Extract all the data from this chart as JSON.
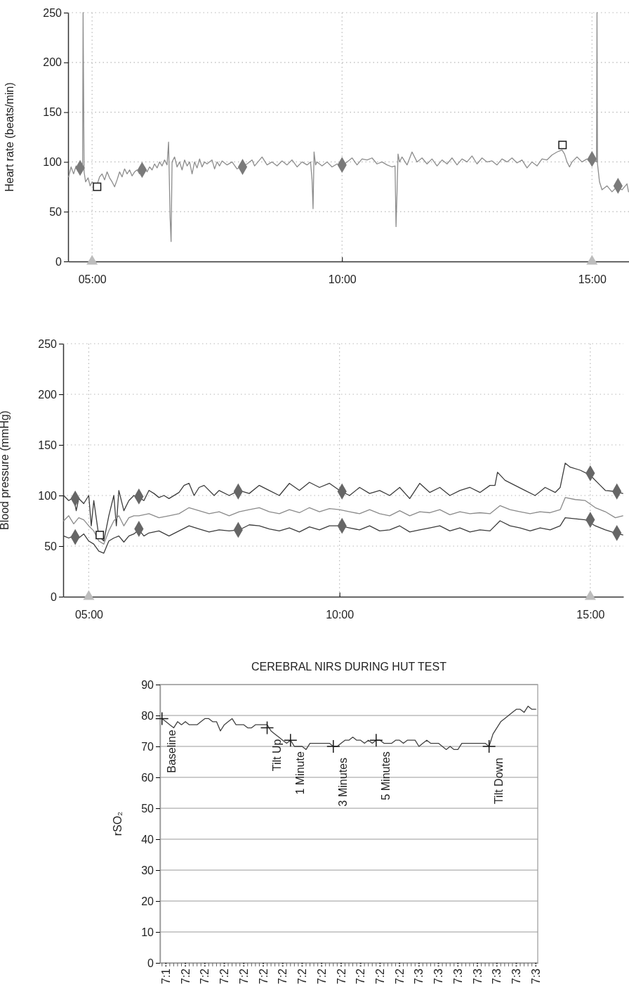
{
  "chart_data": [
    {
      "type": "line",
      "ylabel": "Heart rate (beats/min)",
      "xlim": [
        4.52,
        15.74
      ],
      "xticks": [
        {
          "value": 5,
          "label": "05:00"
        },
        {
          "value": 10,
          "label": "10:00"
        },
        {
          "value": 15,
          "label": "15:00"
        }
      ],
      "ylim": [
        0,
        250
      ],
      "yticks": [
        0,
        50,
        100,
        150,
        200,
        250
      ],
      "grid": true,
      "series": [
        {
          "color": "#8c8c8c",
          "x": [
            4.53,
            4.58,
            4.63,
            4.68,
            4.73,
            4.78,
            4.81,
            4.82,
            4.84,
            4.87,
            4.92,
            4.96,
            5.0,
            5.05,
            5.1,
            5.15,
            5.2,
            5.25,
            5.3,
            5.35,
            5.4,
            5.45,
            5.5,
            5.55,
            5.6,
            5.65,
            5.7,
            5.75,
            5.8,
            5.85,
            5.9,
            5.95,
            6.0,
            6.05,
            6.1,
            6.15,
            6.2,
            6.25,
            6.3,
            6.35,
            6.4,
            6.45,
            6.5,
            6.53,
            6.56,
            6.58,
            6.6,
            6.65,
            6.7,
            6.75,
            6.8,
            6.85,
            6.9,
            6.95,
            7.0,
            7.05,
            7.1,
            7.15,
            7.2,
            7.25,
            7.3,
            7.4,
            7.45,
            7.5,
            7.55,
            7.6,
            7.7,
            7.8,
            7.9,
            8.0,
            8.1,
            8.2,
            8.25,
            8.4,
            8.5,
            8.6,
            8.7,
            8.8,
            8.9,
            9.0,
            9.1,
            9.2,
            9.3,
            9.37,
            9.4,
            9.42,
            9.44,
            9.47,
            9.5,
            9.6,
            9.7,
            9.8,
            9.9,
            10.0,
            10.1,
            10.2,
            10.3,
            10.4,
            10.5,
            10.6,
            10.7,
            10.8,
            10.9,
            11.0,
            11.06,
            11.08,
            11.1,
            11.12,
            11.15,
            11.2,
            11.3,
            11.4,
            11.5,
            11.6,
            11.7,
            11.8,
            11.9,
            12.0,
            12.1,
            12.2,
            12.3,
            12.4,
            12.5,
            12.6,
            12.7,
            12.8,
            12.9,
            13.0,
            13.1,
            13.2,
            13.3,
            13.4,
            13.5,
            13.6,
            13.7,
            13.8,
            13.9,
            14.0,
            14.1,
            14.2,
            14.3,
            14.4,
            14.45,
            14.5,
            14.55,
            14.6,
            14.7,
            14.8,
            14.9,
            14.95,
            15.0,
            15.09,
            15.1,
            15.11,
            15.15,
            15.2,
            15.3,
            15.4,
            15.5,
            15.6,
            15.7,
            15.73
          ],
          "values": [
            85,
            95,
            88,
            96,
            90,
            94,
            92,
            250,
            90,
            80,
            84,
            76,
            80,
            78,
            77,
            85,
            88,
            82,
            90,
            84,
            80,
            75,
            82,
            90,
            85,
            93,
            88,
            92,
            86,
            90,
            92,
            88,
            92,
            95,
            90,
            95,
            92,
            98,
            94,
            100,
            96,
            102,
            97,
            120,
            45,
            20,
            100,
            105,
            95,
            100,
            92,
            102,
            96,
            100,
            88,
            100,
            94,
            103,
            95,
            100,
            98,
            102,
            93,
            100,
            96,
            101,
            97,
            100,
            93,
            96,
            98,
            102,
            96,
            105,
            97,
            100,
            96,
            101,
            97,
            102,
            95,
            100,
            97,
            100,
            82,
            53,
            110,
            97,
            100,
            96,
            100,
            95,
            98,
            96,
            100,
            104,
            97,
            103,
            102,
            104,
            98,
            100,
            97,
            95,
            96,
            35,
            70,
            108,
            100,
            105,
            97,
            110,
            100,
            104,
            98,
            103,
            96,
            102,
            98,
            104,
            97,
            103,
            100,
            106,
            98,
            104,
            100,
            101,
            97,
            103,
            100,
            104,
            99,
            102,
            94,
            100,
            96,
            103,
            102,
            107,
            110,
            112,
            108,
            100,
            95,
            100,
            105,
            100,
            103,
            100,
            104,
            100,
            250,
            98,
            80,
            72,
            76,
            70,
            75,
            72,
            78,
            70
          ]
        },
        {
          "type": "scatter",
          "marker": "diamond",
          "color": "#7a7a7a",
          "x": [
            4.76,
            6.0,
            8.01,
            10.0,
            15.0,
            15.52
          ],
          "values": [
            94,
            92,
            95,
            97,
            103,
            76
          ]
        },
        {
          "type": "scatter",
          "marker": "square",
          "color": "#1a1a1a",
          "x": [
            5.1,
            14.41
          ],
          "values": [
            75,
            117
          ]
        },
        {
          "type": "scatter",
          "marker": "triangle",
          "color": "#bdbdbd",
          "x": [
            5.0,
            15.0
          ],
          "values": [
            0,
            0
          ]
        }
      ]
    },
    {
      "type": "line",
      "ylabel": "Blood pressure (mmHg)",
      "xlim": [
        4.49,
        15.66
      ],
      "xticks": [
        {
          "value": 5,
          "label": "05:00"
        },
        {
          "value": 10,
          "label": "10:00"
        },
        {
          "value": 15,
          "label": "15:00"
        }
      ],
      "ylim": [
        0,
        250
      ],
      "yticks": [
        0,
        50,
        100,
        150,
        200,
        250
      ],
      "grid": true,
      "series": [
        {
          "color": "#3c3c3c",
          "x": [
            4.5,
            4.6,
            4.7,
            4.75,
            4.8,
            4.9,
            5.0,
            5.05,
            5.1,
            5.2,
            5.3,
            5.4,
            5.5,
            5.55,
            5.6,
            5.7,
            5.8,
            5.9,
            6.0,
            6.1,
            6.2,
            6.3,
            6.4,
            6.5,
            6.6,
            6.8,
            6.9,
            7.0,
            7.1,
            7.2,
            7.3,
            7.5,
            7.6,
            7.8,
            8.0,
            8.2,
            8.4,
            8.6,
            8.8,
            9.0,
            9.2,
            9.4,
            9.6,
            9.8,
            10.0,
            10.2,
            10.4,
            10.6,
            10.8,
            11.0,
            11.2,
            11.4,
            11.6,
            11.8,
            12.0,
            12.2,
            12.4,
            12.6,
            12.8,
            13.0,
            13.1,
            13.15,
            13.3,
            13.5,
            13.7,
            13.9,
            14.1,
            14.3,
            14.4,
            14.5,
            14.6,
            14.8,
            15.0,
            15.2,
            15.3,
            15.5,
            15.65
          ],
          "values": [
            100,
            95,
            98,
            85,
            97,
            92,
            100,
            70,
            95,
            60,
            55,
            80,
            100,
            70,
            105,
            85,
            95,
            100,
            98,
            95,
            105,
            102,
            98,
            100,
            97,
            103,
            110,
            112,
            100,
            108,
            110,
            100,
            105,
            100,
            105,
            102,
            110,
            105,
            100,
            112,
            105,
            113,
            108,
            112,
            105,
            100,
            108,
            102,
            105,
            100,
            108,
            97,
            112,
            103,
            108,
            100,
            105,
            108,
            103,
            110,
            110,
            123,
            115,
            110,
            105,
            100,
            108,
            103,
            108,
            132,
            128,
            125,
            120,
            110,
            105,
            104,
            102
          ]
        },
        {
          "color": "#8a8a8a",
          "x": [
            4.5,
            4.6,
            4.7,
            4.8,
            4.9,
            5.0,
            5.1,
            5.2,
            5.3,
            5.4,
            5.5,
            5.6,
            5.7,
            5.8,
            5.9,
            6.0,
            6.2,
            6.4,
            6.6,
            6.8,
            7.0,
            7.2,
            7.4,
            7.6,
            7.8,
            8.0,
            8.2,
            8.4,
            8.6,
            8.8,
            9.0,
            9.2,
            9.4,
            9.6,
            9.8,
            10.0,
            10.2,
            10.4,
            10.6,
            10.8,
            11.0,
            11.2,
            11.4,
            11.6,
            11.8,
            12.0,
            12.2,
            12.4,
            12.6,
            12.8,
            13.0,
            13.2,
            13.4,
            13.6,
            13.8,
            14.0,
            14.2,
            14.4,
            14.5,
            14.7,
            14.9,
            15.1,
            15.3,
            15.5,
            15.65
          ],
          "values": [
            75,
            80,
            72,
            78,
            76,
            70,
            65,
            55,
            52,
            65,
            75,
            80,
            70,
            78,
            80,
            80,
            82,
            78,
            80,
            82,
            88,
            85,
            82,
            84,
            80,
            84,
            86,
            88,
            84,
            82,
            86,
            83,
            88,
            84,
            87,
            86,
            84,
            82,
            86,
            82,
            80,
            85,
            80,
            84,
            83,
            86,
            81,
            84,
            82,
            83,
            82,
            90,
            86,
            84,
            82,
            84,
            83,
            86,
            98,
            96,
            95,
            88,
            84,
            78,
            80
          ]
        },
        {
          "color": "#3c3c3c",
          "x": [
            4.5,
            4.6,
            4.7,
            4.8,
            4.9,
            5.0,
            5.1,
            5.2,
            5.3,
            5.4,
            5.5,
            5.6,
            5.7,
            5.8,
            5.9,
            6.0,
            6.1,
            6.2,
            6.4,
            6.6,
            6.8,
            7.0,
            7.2,
            7.4,
            7.6,
            7.8,
            8.0,
            8.2,
            8.4,
            8.6,
            8.8,
            9.0,
            9.2,
            9.4,
            9.6,
            9.8,
            10.0,
            10.2,
            10.4,
            10.6,
            10.8,
            11.0,
            11.2,
            11.4,
            11.6,
            11.8,
            12.0,
            12.2,
            12.4,
            12.6,
            12.8,
            13.0,
            13.2,
            13.4,
            13.6,
            13.8,
            14.0,
            14.2,
            14.4,
            14.5,
            14.7,
            14.9,
            15.1,
            15.3,
            15.5,
            15.65
          ],
          "values": [
            60,
            58,
            60,
            58,
            62,
            55,
            52,
            45,
            43,
            55,
            58,
            60,
            54,
            60,
            62,
            66,
            60,
            63,
            65,
            60,
            65,
            70,
            67,
            64,
            66,
            65,
            66,
            71,
            70,
            67,
            65,
            68,
            64,
            69,
            66,
            70,
            70,
            68,
            66,
            70,
            65,
            66,
            70,
            64,
            66,
            68,
            70,
            65,
            68,
            64,
            66,
            65,
            75,
            70,
            68,
            65,
            68,
            66,
            70,
            78,
            77,
            76,
            70,
            66,
            63,
            61
          ]
        },
        {
          "type": "scatter",
          "marker": "diamond",
          "color": "#666666",
          "x": [
            4.73,
            6.0,
            7.98,
            10.05,
            15.0,
            15.53,
            4.73,
            6.0,
            7.98,
            10.05,
            15.0,
            15.53
          ],
          "values": [
            97,
            99,
            104,
            104,
            122,
            104,
            59,
            67,
            66,
            70,
            76,
            63
          ]
        },
        {
          "type": "scatter",
          "marker": "square",
          "color": "#1a1a1a",
          "x": [
            5.22
          ],
          "values": [
            61
          ]
        },
        {
          "type": "scatter",
          "marker": "triangle",
          "color": "#bdbdbd",
          "x": [
            5.0,
            15.0
          ],
          "values": [
            0,
            0
          ]
        }
      ]
    },
    {
      "type": "line",
      "title": "CEREBRAL NIRS DURING HUT TEST",
      "ylabel": "rSO₂",
      "categories": [
        null,
        "7:1",
        null,
        null,
        null,
        null,
        "7:2",
        null,
        null,
        null,
        null,
        "7:2",
        null,
        null,
        null,
        null,
        "7:2",
        null,
        null,
        null,
        null,
        "7:2",
        null,
        null,
        null,
        null,
        "7:2",
        null,
        null,
        null,
        null,
        "7:2",
        null,
        null,
        null,
        null,
        "7:2",
        null,
        null,
        null,
        null,
        "7:2",
        null,
        null,
        null,
        null,
        "7:2",
        null,
        null,
        null,
        null,
        "7:2",
        null,
        null,
        null,
        null,
        "7:2",
        null,
        null,
        null,
        null,
        "7:2",
        null,
        null,
        null,
        null,
        "7:3",
        null,
        null,
        null,
        null,
        "7:3",
        null,
        null,
        null,
        null,
        "7:3",
        null,
        null,
        null,
        null,
        "7:3",
        null,
        null,
        null,
        null,
        "7:3",
        null,
        null,
        null,
        null,
        "7:3",
        null,
        null,
        null,
        null,
        "7:3"
      ],
      "ylim": [
        0,
        90
      ],
      "yticks": [
        0,
        10,
        20,
        30,
        40,
        50,
        60,
        70,
        80,
        90
      ],
      "grid": "y",
      "series": [
        {
          "color": "#404040",
          "values": [
            79,
            78,
            77,
            76,
            78,
            77,
            78,
            77,
            77,
            77,
            78,
            79,
            79,
            78,
            78,
            75,
            77,
            78,
            79,
            77,
            77,
            77,
            76,
            76,
            77,
            77,
            77,
            77,
            75,
            74,
            73,
            72,
            71,
            72,
            70,
            70,
            70,
            69,
            71,
            71,
            71,
            71,
            71,
            71,
            70,
            70,
            71,
            72,
            72,
            73,
            72,
            72,
            71,
            72,
            71,
            72,
            72,
            71,
            71,
            71,
            72,
            72,
            71,
            72,
            72,
            72,
            70,
            71,
            72,
            71,
            71,
            71,
            70,
            69,
            70,
            69,
            69,
            71,
            71,
            71,
            71,
            71,
            71,
            71,
            70,
            74,
            76,
            78,
            79,
            80,
            81,
            82,
            82,
            81,
            83,
            82,
            82
          ]
        },
        {
          "type": "scatter",
          "marker": "cross",
          "color": "#1a1a1a",
          "name": "Baseline",
          "values": [
            79,
            null,
            null,
            null,
            null,
            null,
            null,
            null,
            null,
            null,
            null,
            null,
            null,
            null,
            null,
            null,
            null,
            null,
            null,
            null,
            null,
            null,
            null,
            null,
            null,
            null,
            null,
            null,
            null,
            null,
            null,
            null,
            null,
            null,
            null,
            null,
            null,
            null,
            null,
            null,
            null,
            null,
            null,
            null,
            null,
            null,
            null,
            null,
            null,
            null,
            null,
            null,
            null,
            null,
            null,
            null,
            null,
            null,
            null,
            null,
            null,
            null,
            null,
            null,
            null,
            null,
            null,
            null,
            null,
            null,
            null,
            null,
            null,
            null,
            null,
            null,
            null,
            null,
            null,
            null,
            null,
            null,
            null,
            null,
            null,
            null,
            null,
            null,
            null,
            null,
            null,
            null,
            null,
            null,
            null,
            null,
            null
          ]
        },
        {
          "type": "scatter",
          "marker": "cross",
          "color": "#1a1a1a",
          "name": "Tilt Up",
          "values": [
            null,
            null,
            null,
            null,
            null,
            null,
            null,
            null,
            null,
            null,
            null,
            null,
            null,
            null,
            null,
            null,
            null,
            null,
            null,
            null,
            null,
            null,
            null,
            null,
            null,
            null,
            null,
            76,
            null,
            null,
            null,
            null,
            null,
            null,
            null,
            null,
            null,
            null,
            null,
            null,
            null,
            null,
            null,
            null,
            null,
            null,
            null,
            null,
            null,
            null,
            null,
            null,
            null,
            null,
            null,
            null,
            null,
            null,
            null,
            null,
            null,
            null,
            null,
            null,
            null,
            null,
            null,
            null,
            null,
            null,
            null,
            null,
            null,
            null,
            null,
            null,
            null,
            null,
            null,
            null,
            null,
            null,
            null,
            null,
            null,
            null,
            null,
            null,
            null,
            null,
            null,
            null,
            null,
            null,
            null,
            null,
            null
          ]
        },
        {
          "type": "scatter",
          "marker": "cross",
          "color": "#1a1a1a",
          "name": "1 Minute",
          "values": [
            null,
            null,
            null,
            null,
            null,
            null,
            null,
            null,
            null,
            null,
            null,
            null,
            null,
            null,
            null,
            null,
            null,
            null,
            null,
            null,
            null,
            null,
            null,
            null,
            null,
            null,
            null,
            null,
            null,
            null,
            null,
            null,
            null,
            72,
            null,
            null,
            null,
            null,
            null,
            null,
            null,
            null,
            null,
            null,
            null,
            null,
            null,
            null,
            null,
            null,
            null,
            null,
            null,
            null,
            null,
            null,
            null,
            null,
            null,
            null,
            null,
            null,
            null,
            null,
            null,
            null,
            null,
            null,
            null,
            null,
            null,
            null,
            null,
            null,
            null,
            null,
            null,
            null,
            null,
            null,
            null,
            null,
            null,
            null,
            null,
            null,
            null,
            null,
            null,
            null,
            null,
            null,
            null,
            null,
            null,
            null,
            null
          ]
        },
        {
          "type": "scatter",
          "marker": "cross",
          "color": "#1a1a1a",
          "name": "3 Minutes",
          "values": [
            null,
            null,
            null,
            null,
            null,
            null,
            null,
            null,
            null,
            null,
            null,
            null,
            null,
            null,
            null,
            null,
            null,
            null,
            null,
            null,
            null,
            null,
            null,
            null,
            null,
            null,
            null,
            null,
            null,
            null,
            null,
            null,
            null,
            null,
            null,
            null,
            null,
            null,
            null,
            null,
            null,
            null,
            null,
            null,
            70,
            null,
            null,
            null,
            null,
            null,
            null,
            null,
            null,
            null,
            null,
            null,
            null,
            null,
            null,
            null,
            null,
            null,
            null,
            null,
            null,
            null,
            null,
            null,
            null,
            null,
            null,
            null,
            null,
            null,
            null,
            null,
            null,
            null,
            null,
            null,
            null,
            null,
            null,
            null,
            null,
            null,
            null,
            null,
            null,
            null,
            null,
            null,
            null,
            null,
            null,
            null,
            null
          ]
        },
        {
          "type": "scatter",
          "marker": "cross",
          "color": "#1a1a1a",
          "name": "5 Minutes",
          "values": [
            null,
            null,
            null,
            null,
            null,
            null,
            null,
            null,
            null,
            null,
            null,
            null,
            null,
            null,
            null,
            null,
            null,
            null,
            null,
            null,
            null,
            null,
            null,
            null,
            null,
            null,
            null,
            null,
            null,
            null,
            null,
            null,
            null,
            null,
            null,
            null,
            null,
            null,
            null,
            null,
            null,
            null,
            null,
            null,
            null,
            null,
            null,
            null,
            null,
            null,
            null,
            null,
            null,
            null,
            null,
            72,
            null,
            null,
            null,
            null,
            null,
            null,
            null,
            null,
            null,
            null,
            null,
            null,
            null,
            null,
            null,
            null,
            null,
            null,
            null,
            null,
            null,
            null,
            null,
            null,
            null,
            null,
            null,
            null,
            null,
            null,
            null,
            null,
            null,
            null,
            null,
            null,
            null,
            null,
            null,
            null,
            null
          ]
        },
        {
          "type": "scatter",
          "marker": "cross",
          "color": "#1a1a1a",
          "name": "Tilt Down",
          "values": [
            null,
            null,
            null,
            null,
            null,
            null,
            null,
            null,
            null,
            null,
            null,
            null,
            null,
            null,
            null,
            null,
            null,
            null,
            null,
            null,
            null,
            null,
            null,
            null,
            null,
            null,
            null,
            null,
            null,
            null,
            null,
            null,
            null,
            null,
            null,
            null,
            null,
            null,
            null,
            null,
            null,
            null,
            null,
            null,
            null,
            null,
            null,
            null,
            null,
            null,
            null,
            null,
            null,
            null,
            null,
            null,
            null,
            null,
            null,
            null,
            null,
            null,
            null,
            null,
            null,
            null,
            null,
            null,
            null,
            null,
            null,
            null,
            null,
            null,
            null,
            null,
            null,
            null,
            null,
            null,
            null,
            null,
            null,
            null,
            70,
            null,
            null,
            null,
            null,
            null,
            null,
            null,
            null,
            null,
            null,
            null,
            null
          ]
        }
      ]
    }
  ]
}
